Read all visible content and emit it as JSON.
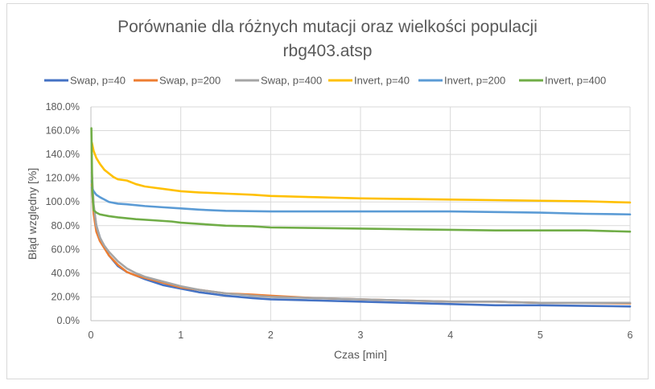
{
  "chart_data": {
    "type": "line",
    "title": "Porównanie dla różnych mutacji oraz wielkości populacji",
    "subtitle": "rbg403.atsp",
    "xlabel": "Czas [min]",
    "ylabel": "Błąd względny [%]",
    "xlim": [
      0,
      6
    ],
    "ylim": [
      0,
      180
    ],
    "x_ticks": [
      "0",
      "1",
      "2",
      "3",
      "4",
      "5",
      "6"
    ],
    "y_ticks": [
      "0.0%",
      "20.0%",
      "40.0%",
      "60.0%",
      "80.0%",
      "100.0%",
      "120.0%",
      "140.0%",
      "160.0%",
      "180.0%"
    ],
    "grid": true,
    "legend_position": "top",
    "series": [
      {
        "name": "Swap, p=40",
        "color": "#4472c4",
        "x": [
          0.01,
          0.03,
          0.06,
          0.1,
          0.15,
          0.2,
          0.3,
          0.4,
          0.5,
          0.6,
          0.8,
          1.0,
          1.2,
          1.5,
          1.8,
          2.0,
          2.5,
          3.0,
          3.5,
          4.0,
          4.5,
          5.0,
          5.5,
          6.0
        ],
        "values": [
          118,
          95,
          80,
          70,
          62,
          55,
          46,
          41,
          38,
          35,
          30,
          27,
          24,
          21,
          19,
          18,
          17,
          16,
          15,
          14,
          13,
          13,
          12.5,
          12
        ]
      },
      {
        "name": "Swap, p=200",
        "color": "#ed7d31",
        "x": [
          0.01,
          0.03,
          0.06,
          0.1,
          0.15,
          0.2,
          0.3,
          0.4,
          0.5,
          0.6,
          0.8,
          1.0,
          1.2,
          1.5,
          1.8,
          2.0,
          2.5,
          3.0,
          3.5,
          4.0,
          4.5,
          5.0,
          5.5,
          6.0
        ],
        "values": [
          115,
          90,
          75,
          67,
          61,
          55,
          47,
          41,
          38,
          36,
          32,
          28,
          26,
          23,
          22,
          21,
          19,
          18,
          17,
          16,
          16,
          15,
          15,
          14.5
        ]
      },
      {
        "name": "Swap, p=400",
        "color": "#a5a5a5",
        "x": [
          0.01,
          0.03,
          0.06,
          0.1,
          0.15,
          0.2,
          0.3,
          0.4,
          0.5,
          0.6,
          0.8,
          1.0,
          1.2,
          1.5,
          1.8,
          2.0,
          2.5,
          3.0,
          3.5,
          4.0,
          4.5,
          5.0,
          5.5,
          6.0
        ],
        "values": [
          125,
          98,
          80,
          70,
          63,
          58,
          50,
          44,
          40,
          37,
          33,
          29,
          26,
          23,
          21,
          20,
          19,
          18,
          17,
          16,
          16,
          15,
          15,
          15
        ]
      },
      {
        "name": "Invert, p=40",
        "color": "#ffc000",
        "x": [
          0.01,
          0.03,
          0.06,
          0.1,
          0.15,
          0.2,
          0.25,
          0.3,
          0.4,
          0.5,
          0.6,
          0.7,
          0.8,
          0.9,
          1.0,
          1.2,
          1.5,
          1.8,
          2.0,
          2.5,
          3.0,
          3.5,
          4.0,
          4.5,
          5.0,
          5.5,
          6.0
        ],
        "values": [
          150,
          143,
          137,
          132,
          127,
          124,
          121,
          119,
          118,
          115,
          113,
          112,
          111,
          110,
          109,
          108,
          107,
          106,
          105,
          104,
          103,
          102.5,
          102,
          101.5,
          101,
          100.5,
          99.5
        ]
      },
      {
        "name": "Invert, p=200",
        "color": "#5b9bd5",
        "x": [
          0.01,
          0.03,
          0.06,
          0.1,
          0.15,
          0.2,
          0.3,
          0.4,
          0.6,
          0.8,
          1.0,
          1.2,
          1.5,
          2.0,
          2.5,
          3.0,
          3.5,
          4.0,
          4.5,
          5.0,
          5.5,
          6.0
        ],
        "values": [
          112,
          109,
          106,
          104,
          102,
          100,
          98.5,
          98,
          96.5,
          95.5,
          94.5,
          93.5,
          92.5,
          92,
          92,
          92,
          92,
          92,
          91.5,
          91,
          90,
          89.5
        ]
      },
      {
        "name": "Invert, p=400",
        "color": "#70ad47",
        "x": [
          0.005,
          0.015,
          0.03,
          0.06,
          0.1,
          0.2,
          0.3,
          0.5,
          0.7,
          0.9,
          1.0,
          1.2,
          1.5,
          1.8,
          2.0,
          2.5,
          3.0,
          3.5,
          4.0,
          4.5,
          5.0,
          5.5,
          6.0
        ],
        "values": [
          162,
          110,
          93,
          91,
          89.5,
          88,
          87,
          85.5,
          84.5,
          83.5,
          82.5,
          81.5,
          80,
          79.5,
          78.5,
          78,
          77.5,
          77,
          76.5,
          76,
          76,
          76,
          75
        ]
      }
    ]
  }
}
